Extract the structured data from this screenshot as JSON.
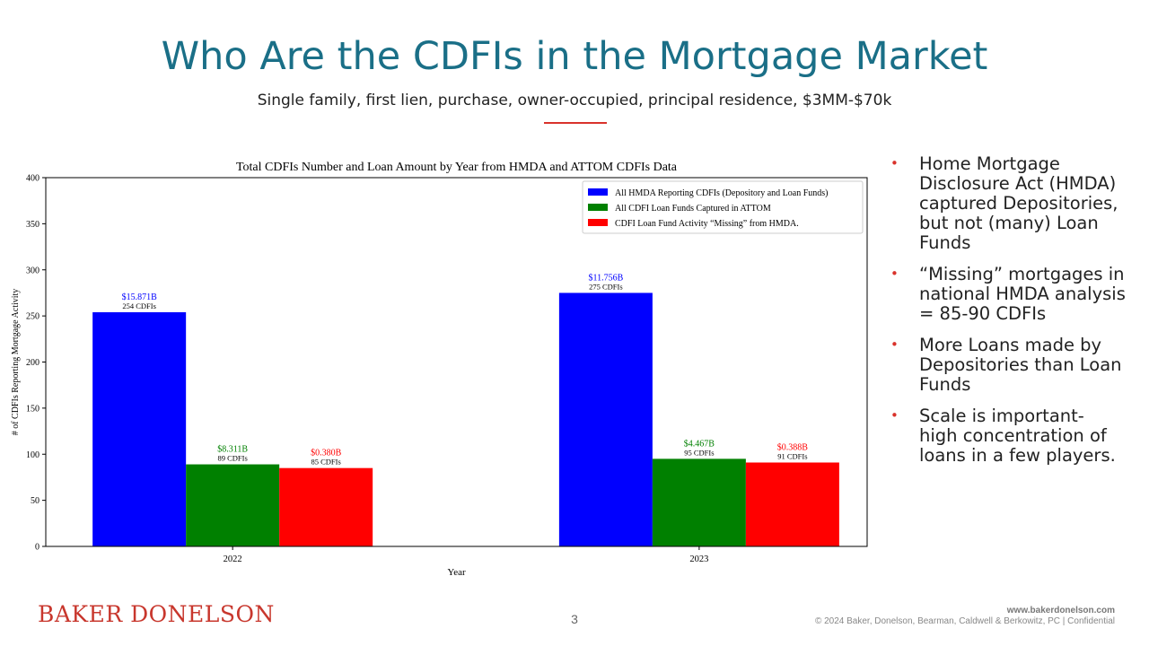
{
  "slide": {
    "title": "Who Are the CDFIs in the Mortgage Market",
    "subtitle": "Single family, first lien, purchase, owner-occupied, principal residence, $3MM-$70k",
    "bullets": [
      "Home Mortgage Disclosure Act (HMDA) captured Depositories, but not (many) Loan Funds",
      "“Missing” mortgages in national HMDA analysis = 85-90 CDFIs",
      "More Loans made by Depositories than Loan Funds",
      "Scale is important- high concentration of loans in a few players."
    ],
    "bullet_glyph": "•",
    "accent_color": "#d9322b",
    "title_color": "#1a6f87"
  },
  "footer": {
    "logo": "BAKER DONELSON",
    "page_number": "3",
    "website": "www.bakerdonelson.com",
    "copyright": "© 2024 Baker, Donelson, Bearman, Caldwell & Berkowitz, PC | Confidential"
  },
  "chart_data": {
    "type": "bar",
    "title": "Total CDFIs Number and Loan Amount by Year from HMDA and ATTOM CDFIs Data",
    "xlabel": "Year",
    "ylabel": "# of CDFIs Reporting Mortgage Activity",
    "categories": [
      "2022",
      "2023"
    ],
    "ylim": [
      0,
      400
    ],
    "yticks": [
      0,
      50,
      100,
      150,
      200,
      250,
      300,
      350,
      400
    ],
    "legend_position": "top-right",
    "series": [
      {
        "name": "All HMDA Reporting CDFIs (Depository and Loan Funds)",
        "color": "#0000ff",
        "values": [
          254,
          275
        ],
        "amount_labels": [
          "$15.871B",
          "$11.756B"
        ],
        "count_labels": [
          "254 CDFIs",
          "275 CDFIs"
        ]
      },
      {
        "name": "All CDFI Loan Funds Captured in ATTOM",
        "color": "#008000",
        "values": [
          89,
          95
        ],
        "amount_labels": [
          "$8.311B",
          "$4.467B"
        ],
        "count_labels": [
          "89 CDFIs",
          "95 CDFIs"
        ]
      },
      {
        "name": "CDFI Loan Fund Activity “Missing” from HMDA.",
        "color": "#ff0000",
        "values": [
          85,
          91
        ],
        "amount_labels": [
          "$0.380B",
          "$0.388B"
        ],
        "count_labels": [
          "85 CDFIs",
          "91 CDFIs"
        ]
      }
    ]
  }
}
